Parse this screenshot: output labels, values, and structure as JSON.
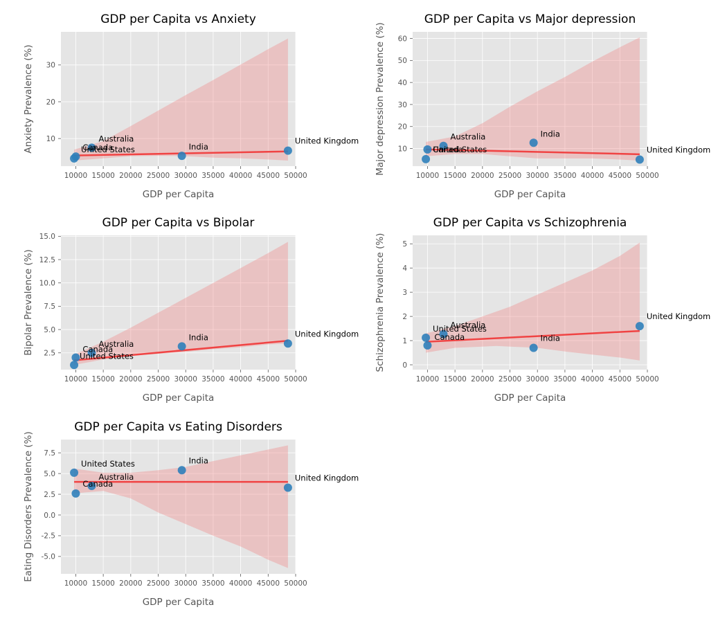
{
  "colors": {
    "point": "#2f7fba",
    "fit_line": "#f03c3c",
    "confidence_band": "#f08080",
    "panel_background": "#e5e5e5",
    "grid": "#ffffff"
  },
  "chart_data": [
    {
      "type": "scatter",
      "title": "GDP per Capita vs Anxiety",
      "xlabel": "GDP per Capita",
      "ylabel": "Anxiety Prevalence (%)",
      "xlim": [
        7300,
        50000
      ],
      "ylim": [
        2.5,
        39
      ],
      "x_ticks": [
        10000,
        15000,
        20000,
        25000,
        30000,
        35000,
        40000,
        45000,
        50000
      ],
      "y_ticks": [
        10,
        20,
        30
      ],
      "grid": true,
      "points": [
        {
          "label": "United States",
          "x": 9700,
          "y": 4.6
        },
        {
          "label": "Canada",
          "x": 10000,
          "y": 5.1
        },
        {
          "label": "Australia",
          "x": 12900,
          "y": 7.5
        },
        {
          "label": "India",
          "x": 29300,
          "y": 5.3
        },
        {
          "label": "United Kingdom",
          "x": 48600,
          "y": 6.7
        }
      ],
      "fit": {
        "x": [
          9700,
          48600
        ],
        "y": [
          5.4,
          6.5
        ]
      },
      "band": {
        "x": [
          9700,
          15000,
          20000,
          25000,
          30000,
          35000,
          40000,
          45000,
          48600
        ],
        "upper": [
          7.0,
          9.3,
          13.4,
          17.6,
          21.8,
          25.9,
          30.1,
          34.3,
          37.2
        ],
        "lower": [
          4.0,
          4.6,
          5.2,
          5.3,
          5.2,
          4.8,
          4.6,
          4.3,
          4.0
        ]
      }
    },
    {
      "type": "scatter",
      "title": "GDP per Capita vs Major depression",
      "xlabel": "GDP per Capita",
      "ylabel": "Major depression Prevalence (%)",
      "xlim": [
        7300,
        50000
      ],
      "ylim": [
        2,
        63
      ],
      "x_ticks": [
        10000,
        15000,
        20000,
        25000,
        30000,
        35000,
        40000,
        45000,
        50000
      ],
      "y_ticks": [
        10,
        20,
        30,
        40,
        50,
        60
      ],
      "grid": true,
      "points": [
        {
          "label": "Canada",
          "x": 9700,
          "y": 5.2
        },
        {
          "label": "United States",
          "x": 10000,
          "y": 9.6
        },
        {
          "label": "Australia",
          "x": 12900,
          "y": 11.2
        },
        {
          "label": "India",
          "x": 29300,
          "y": 12.6
        },
        {
          "label": "United Kingdom",
          "x": 48600,
          "y": 5.0
        }
      ],
      "fit": {
        "x": [
          9700,
          48600
        ],
        "y": [
          9.6,
          7.4
        ]
      },
      "band": {
        "x": [
          9700,
          15000,
          20000,
          25000,
          30000,
          35000,
          40000,
          45000,
          48600
        ],
        "upper": [
          13.0,
          15.5,
          21.5,
          29.0,
          36.0,
          42.5,
          49.5,
          56.0,
          60.5
        ],
        "lower": [
          6.5,
          7.5,
          7.5,
          6.5,
          5.5,
          5.5,
          5.5,
          5.0,
          4.5
        ]
      }
    },
    {
      "type": "scatter",
      "title": "GDP per Capita vs Bipolar",
      "xlabel": "GDP per Capita",
      "ylabel": "Bipolar Prevalence (%)",
      "xlim": [
        7300,
        50000
      ],
      "ylim": [
        0.7,
        15.1
      ],
      "x_ticks": [
        10000,
        15000,
        20000,
        25000,
        30000,
        35000,
        40000,
        45000,
        50000
      ],
      "y_ticks": [
        2.5,
        5.0,
        7.5,
        10.0,
        12.5,
        15.0
      ],
      "grid": true,
      "points": [
        {
          "label": "United States",
          "x": 9700,
          "y": 1.2
        },
        {
          "label": "Canada",
          "x": 10000,
          "y": 2.0
        },
        {
          "label": "Australia",
          "x": 12900,
          "y": 2.5
        },
        {
          "label": "India",
          "x": 29300,
          "y": 3.2
        },
        {
          "label": "United Kingdom",
          "x": 48600,
          "y": 3.5
        }
      ],
      "fit": {
        "x": [
          9700,
          48600
        ],
        "y": [
          1.7,
          3.8
        ]
      },
      "band": {
        "x": [
          9700,
          15000,
          20000,
          25000,
          30000,
          35000,
          40000,
          45000,
          48600
        ],
        "upper": [
          2.3,
          3.7,
          5.2,
          6.8,
          8.4,
          10.0,
          11.6,
          13.2,
          14.4
        ],
        "lower": [
          1.2,
          1.8,
          2.2,
          2.4,
          2.6,
          2.9,
          3.1,
          3.4,
          3.5
        ]
      }
    },
    {
      "type": "scatter",
      "title": "GDP per Capita vs Schizophrenia",
      "xlabel": "GDP per Capita",
      "ylabel": "Schizophrenia Prevalence (%)",
      "xlim": [
        7300,
        50000
      ],
      "ylim": [
        -0.2,
        5.35
      ],
      "x_ticks": [
        10000,
        15000,
        20000,
        25000,
        30000,
        35000,
        40000,
        45000,
        50000
      ],
      "y_ticks": [
        0,
        1,
        2,
        3,
        4,
        5
      ],
      "grid": true,
      "points": [
        {
          "label": "United States",
          "x": 9700,
          "y": 1.12
        },
        {
          "label": "Canada",
          "x": 10000,
          "y": 0.8
        },
        {
          "label": "Australia",
          "x": 12900,
          "y": 1.27
        },
        {
          "label": "India",
          "x": 29300,
          "y": 0.7
        },
        {
          "label": "United Kingdom",
          "x": 48600,
          "y": 1.6
        }
      ],
      "fit": {
        "x": [
          9700,
          48600
        ],
        "y": [
          0.95,
          1.4
        ]
      },
      "band": {
        "x": [
          9700,
          15000,
          20000,
          22500,
          25000,
          30000,
          35000,
          40000,
          45000,
          48600
        ],
        "upper": [
          1.3,
          1.6,
          2.0,
          2.2,
          2.4,
          2.9,
          3.4,
          3.9,
          4.5,
          5.05
        ],
        "lower": [
          0.5,
          0.7,
          0.75,
          0.78,
          0.75,
          0.7,
          0.55,
          0.42,
          0.3,
          0.18
        ]
      }
    },
    {
      "type": "scatter",
      "title": "GDP per Capita vs Eating Disorders",
      "xlabel": "GDP per Capita",
      "ylabel": "Eating Disorders Prevalence (%)",
      "xlim": [
        7300,
        50000
      ],
      "ylim": [
        -7.1,
        9.1
      ],
      "x_ticks": [
        10000,
        15000,
        20000,
        25000,
        30000,
        35000,
        40000,
        45000,
        50000
      ],
      "y_ticks": [
        -5.0,
        -2.5,
        0.0,
        2.5,
        5.0,
        7.5
      ],
      "grid": true,
      "points": [
        {
          "label": "United States",
          "x": 9700,
          "y": 5.1
        },
        {
          "label": "Canada",
          "x": 10000,
          "y": 2.6
        },
        {
          "label": "Australia",
          "x": 12900,
          "y": 3.5
        },
        {
          "label": "India",
          "x": 29300,
          "y": 5.4
        },
        {
          "label": "United Kingdom",
          "x": 48600,
          "y": 3.3
        }
      ],
      "fit": {
        "x": [
          9700,
          48600
        ],
        "y": [
          4.0,
          4.0
        ]
      },
      "band": {
        "x": [
          9700,
          15000,
          20000,
          25000,
          30000,
          35000,
          40000,
          45000,
          48600
        ],
        "upper": [
          5.6,
          5.1,
          5.1,
          5.4,
          5.8,
          6.5,
          7.2,
          7.9,
          8.4
        ],
        "lower": [
          2.6,
          2.9,
          2.0,
          0.3,
          -1.1,
          -2.5,
          -3.8,
          -5.4,
          -6.4
        ]
      }
    }
  ]
}
